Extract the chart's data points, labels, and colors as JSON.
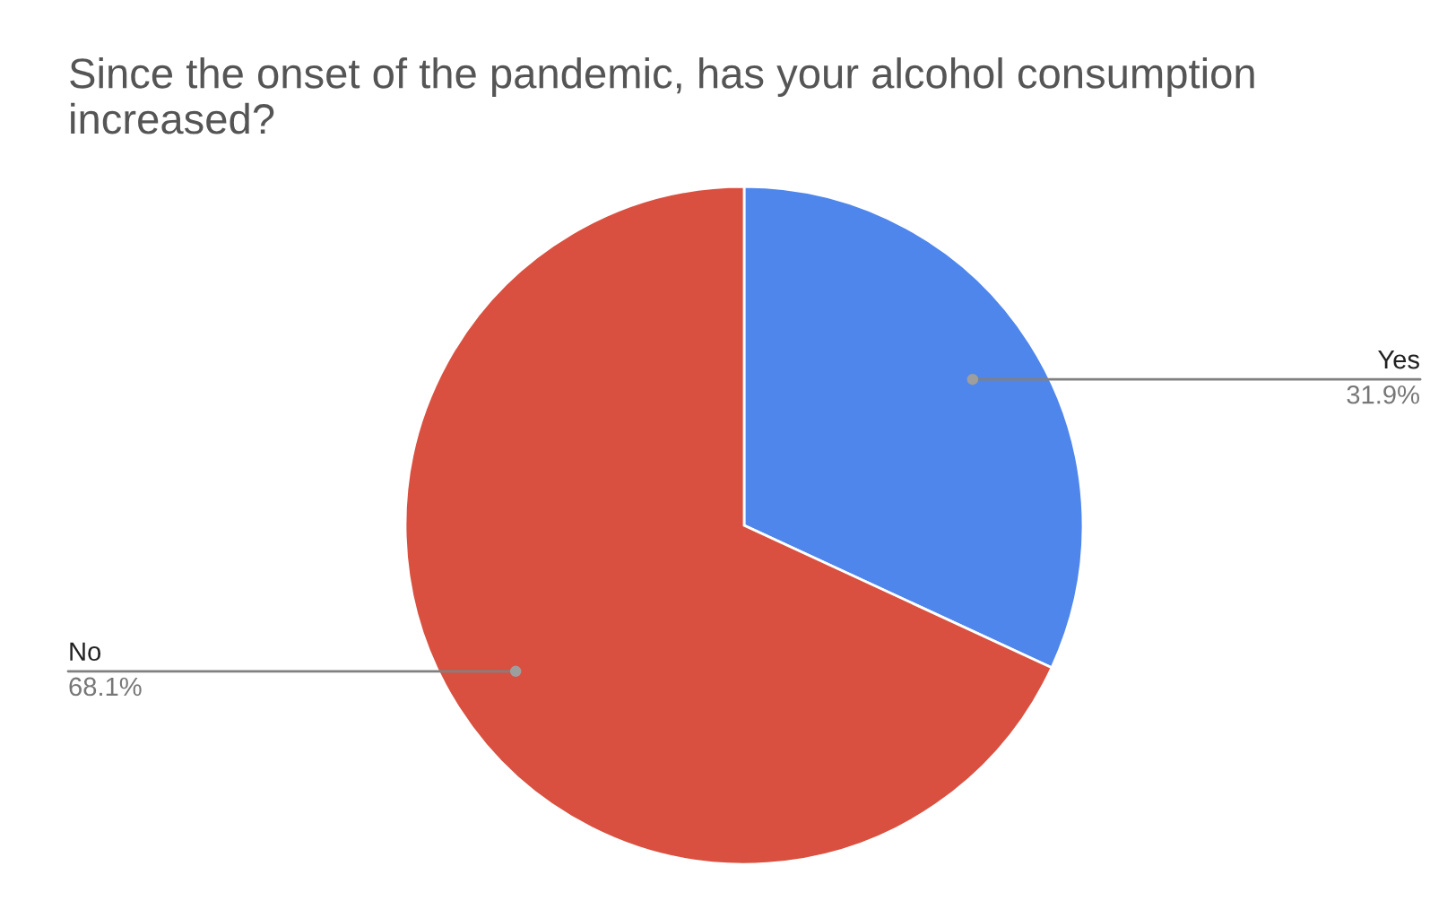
{
  "chart_data": {
    "type": "pie",
    "title": "Since the onset of the pandemic, has your alcohol consumption increased?",
    "categories": [
      "Yes",
      "No"
    ],
    "values": [
      31.9,
      68.1
    ],
    "colors": [
      "#4f86ec",
      "#d95040"
    ],
    "value_labels": [
      "31.9%",
      "68.1%"
    ]
  }
}
